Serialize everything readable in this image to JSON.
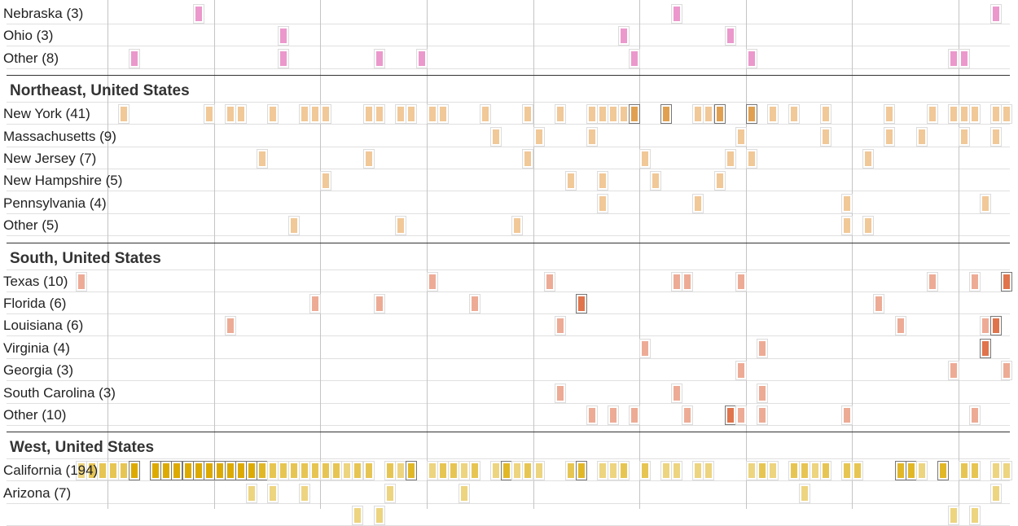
{
  "chart_data": {
    "type": "heatmap",
    "bins_note_shown": false,
    "colors": {
      "midwest": "#e98dc6",
      "northeast": "#efc28c",
      "south": "#eba28a",
      "south_dark": "#e0744c",
      "west": "#dcaa00"
    },
    "regions": [
      {
        "title": "",
        "color_key": "midwest",
        "rows": [
          {
            "label": "Nebraska (3)",
            "cells": [
              [
                18,
                1
              ],
              [
                63,
                1
              ],
              [
                93,
                1
              ]
            ]
          },
          {
            "label": "Ohio (3)",
            "cells": [
              [
                26,
                1
              ],
              [
                58,
                1
              ],
              [
                68,
                1
              ]
            ]
          },
          {
            "label": "Other (8)",
            "cells": [
              [
                12,
                1
              ],
              [
                26,
                1
              ],
              [
                35,
                1
              ],
              [
                39,
                1
              ],
              [
                59,
                1
              ],
              [
                70,
                1
              ],
              [
                89,
                1
              ],
              [
                90,
                1
              ]
            ]
          }
        ]
      },
      {
        "title": "Northeast, United States",
        "color_key": "northeast",
        "rows": [
          {
            "label": "New York (41)",
            "cells": [
              [
                11,
                1
              ],
              [
                19,
                1
              ],
              [
                21,
                1
              ],
              [
                22,
                1
              ],
              [
                25,
                1
              ],
              [
                28,
                1
              ],
              [
                29,
                1
              ],
              [
                30,
                1
              ],
              [
                34,
                1
              ],
              [
                35,
                1
              ],
              [
                37,
                1
              ],
              [
                38,
                1
              ],
              [
                40,
                1
              ],
              [
                41,
                1
              ],
              [
                45,
                1
              ],
              [
                49,
                1
              ],
              [
                52,
                1
              ],
              [
                55,
                1
              ],
              [
                56,
                1
              ],
              [
                57,
                1
              ],
              [
                58,
                1
              ],
              [
                59,
                2
              ],
              [
                62,
                2
              ],
              [
                65,
                1
              ],
              [
                66,
                1
              ],
              [
                67,
                2
              ],
              [
                70,
                2
              ],
              [
                72,
                1
              ],
              [
                74,
                1
              ],
              [
                77,
                1
              ],
              [
                83,
                1
              ],
              [
                87,
                1
              ],
              [
                89,
                1
              ],
              [
                90,
                1
              ],
              [
                91,
                1
              ],
              [
                93,
                1
              ],
              [
                94,
                1
              ]
            ]
          },
          {
            "label": "Massachusetts (9)",
            "cells": [
              [
                46,
                1
              ],
              [
                50,
                1
              ],
              [
                55,
                1
              ],
              [
                69,
                1
              ],
              [
                77,
                1
              ],
              [
                83,
                1
              ],
              [
                86,
                1
              ],
              [
                90,
                1
              ],
              [
                93,
                1
              ]
            ]
          },
          {
            "label": "New Jersey (7)",
            "cells": [
              [
                24,
                1
              ],
              [
                34,
                1
              ],
              [
                49,
                1
              ],
              [
                60,
                1
              ],
              [
                68,
                1
              ],
              [
                70,
                1
              ],
              [
                81,
                1
              ]
            ]
          },
          {
            "label": "New Hampshire (5)",
            "cells": [
              [
                30,
                1
              ],
              [
                53,
                1
              ],
              [
                56,
                1
              ],
              [
                61,
                1
              ],
              [
                67,
                1
              ]
            ]
          },
          {
            "label": "Pennsylvania (4)",
            "cells": [
              [
                56,
                1
              ],
              [
                65,
                1
              ],
              [
                79,
                1
              ],
              [
                92,
                1
              ]
            ]
          },
          {
            "label": "Other (5)",
            "cells": [
              [
                27,
                1
              ],
              [
                37,
                1
              ],
              [
                48,
                1
              ],
              [
                79,
                1
              ],
              [
                81,
                1
              ]
            ]
          }
        ]
      },
      {
        "title": "South, United States",
        "color_key": "south",
        "rows": [
          {
            "label": "Texas (10)",
            "cells": [
              [
                7,
                1
              ],
              [
                40,
                1
              ],
              [
                51,
                1
              ],
              [
                63,
                1
              ],
              [
                64,
                1
              ],
              [
                69,
                1
              ],
              [
                87,
                1
              ],
              [
                91,
                1
              ],
              [
                94,
                2
              ]
            ]
          },
          {
            "label": "Florida (6)",
            "cells": [
              [
                29,
                1
              ],
              [
                35,
                1
              ],
              [
                44,
                1
              ],
              [
                54,
                2
              ],
              [
                82,
                1
              ]
            ]
          },
          {
            "label": "Louisiana (6)",
            "cells": [
              [
                21,
                1
              ],
              [
                52,
                1
              ],
              [
                84,
                1
              ],
              [
                92,
                1
              ],
              [
                93,
                2
              ]
            ]
          },
          {
            "label": "Virginia (4)",
            "cells": [
              [
                60,
                1
              ],
              [
                71,
                1
              ],
              [
                92,
                2
              ]
            ]
          },
          {
            "label": "Georgia (3)",
            "cells": [
              [
                69,
                1
              ],
              [
                89,
                1
              ],
              [
                94,
                1
              ]
            ]
          },
          {
            "label": "South Carolina (3)",
            "cells": [
              [
                52,
                1
              ],
              [
                63,
                1
              ],
              [
                71,
                1
              ]
            ]
          },
          {
            "label": "Other (10)",
            "cells": [
              [
                55,
                1
              ],
              [
                57,
                1
              ],
              [
                59,
                1
              ],
              [
                64,
                1
              ],
              [
                68,
                2
              ],
              [
                69,
                1
              ],
              [
                71,
                1
              ],
              [
                79,
                1
              ],
              [
                91,
                1
              ]
            ]
          }
        ]
      },
      {
        "title": "West, United States",
        "color_key": "west",
        "rows": [
          {
            "label": "California (194)",
            "cells": [
              [
                7,
                1
              ],
              [
                8,
                2
              ],
              [
                9,
                2
              ],
              [
                10,
                2
              ],
              [
                11,
                2
              ],
              [
                12,
                8
              ],
              [
                14,
                9
              ],
              [
                15,
                9
              ],
              [
                16,
                9
              ],
              [
                17,
                9
              ],
              [
                18,
                9
              ],
              [
                19,
                9
              ],
              [
                20,
                8
              ],
              [
                21,
                8
              ],
              [
                22,
                9
              ],
              [
                23,
                8
              ],
              [
                24,
                3
              ],
              [
                25,
                2
              ],
              [
                26,
                2
              ],
              [
                27,
                2
              ],
              [
                28,
                2
              ],
              [
                29,
                2
              ],
              [
                30,
                2
              ],
              [
                31,
                2
              ],
              [
                32,
                1
              ],
              [
                33,
                2
              ],
              [
                34,
                2
              ],
              [
                36,
                2
              ],
              [
                37,
                1
              ],
              [
                38,
                3
              ],
              [
                40,
                1
              ],
              [
                41,
                2
              ],
              [
                42,
                2
              ],
              [
                43,
                1
              ],
              [
                44,
                2
              ],
              [
                46,
                1
              ],
              [
                47,
                3
              ],
              [
                48,
                1
              ],
              [
                49,
                2
              ],
              [
                50,
                1
              ],
              [
                53,
                2
              ],
              [
                54,
                3
              ],
              [
                56,
                1
              ],
              [
                57,
                1
              ],
              [
                58,
                2
              ],
              [
                60,
                2
              ],
              [
                62,
                1
              ],
              [
                63,
                1
              ],
              [
                65,
                1
              ],
              [
                66,
                1
              ],
              [
                70,
                1
              ],
              [
                71,
                2
              ],
              [
                72,
                1
              ],
              [
                74,
                2
              ],
              [
                75,
                2
              ],
              [
                76,
                1
              ],
              [
                77,
                2
              ],
              [
                79,
                2
              ],
              [
                80,
                2
              ],
              [
                84,
                3
              ],
              [
                85,
                3
              ],
              [
                86,
                1
              ],
              [
                88,
                3
              ],
              [
                90,
                2
              ],
              [
                91,
                2
              ],
              [
                93,
                1
              ],
              [
                94,
                1
              ]
            ]
          },
          {
            "label": "Arizona (7)",
            "cells": [
              [
                23,
                1
              ],
              [
                25,
                1
              ],
              [
                28,
                1
              ],
              [
                36,
                1
              ],
              [
                43,
                1
              ],
              [
                75,
                1
              ],
              [
                93,
                1
              ]
            ]
          },
          {
            "label": "",
            "cells": [
              [
                33,
                1
              ],
              [
                35,
                1
              ],
              [
                89,
                1
              ],
              [
                91,
                1
              ]
            ]
          }
        ]
      }
    ]
  }
}
